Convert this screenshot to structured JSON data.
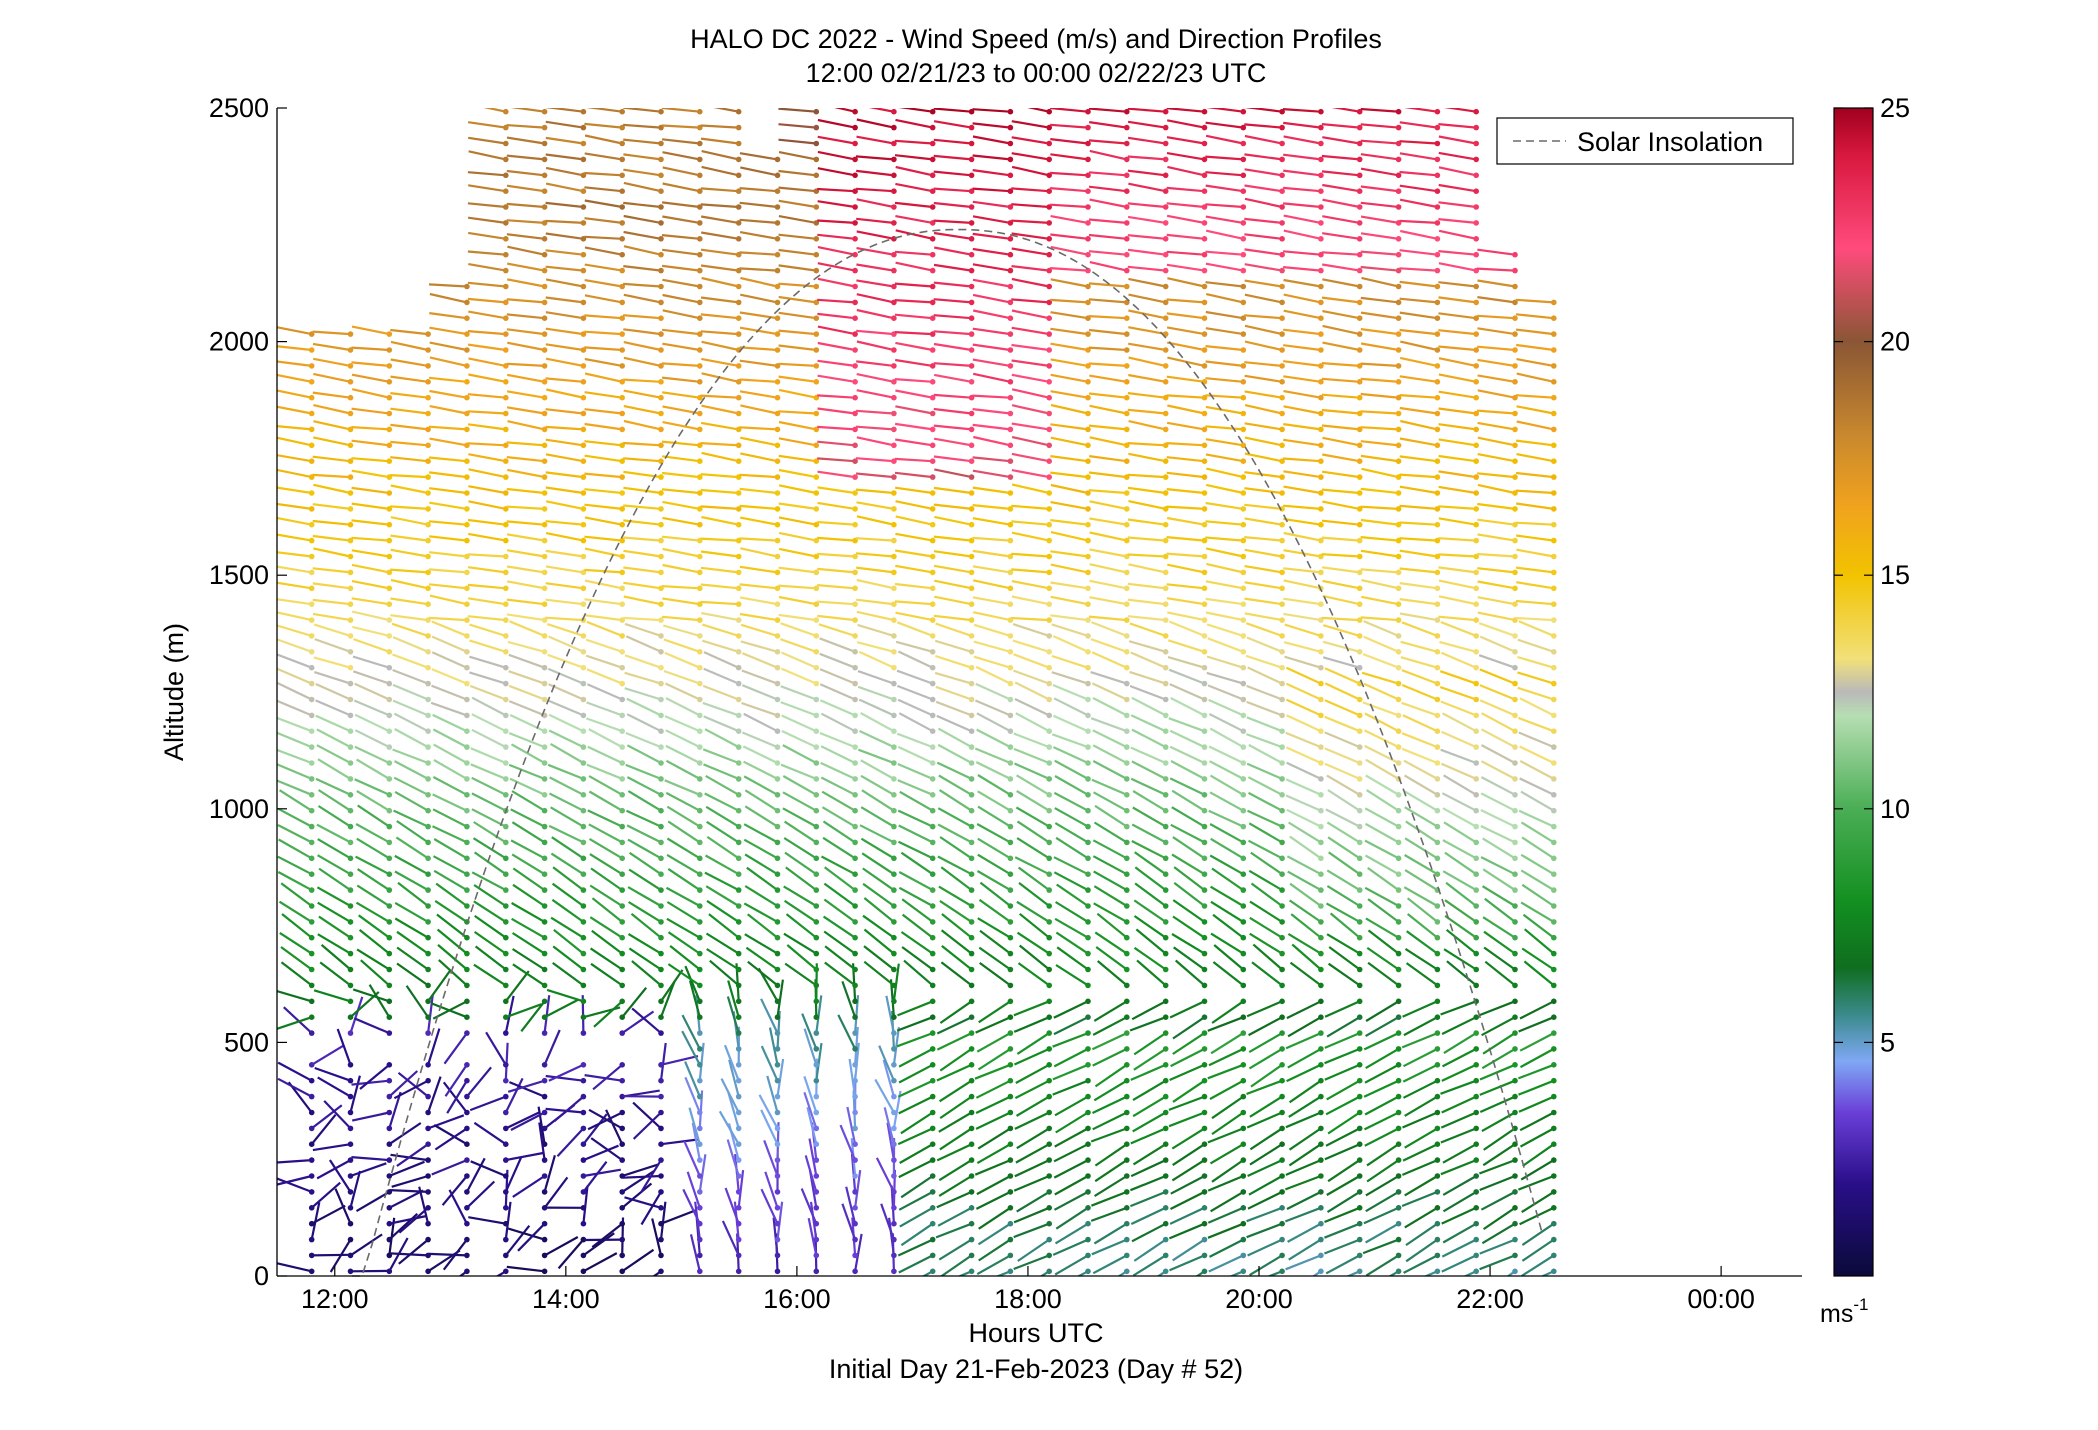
{
  "chart_data": {
    "type": "wind-barb-profile",
    "title": "HALO DC 2022 - Wind Speed (m/s) and Direction Profiles",
    "subtitle": "12:00 02/21/23 to 00:00 02/22/23  UTC",
    "xlabel": "Hours UTC",
    "xlabel2": "Initial Day 21-Feb-2023 (Day # 52)",
    "ylabel": "Altitude (m)",
    "xlim": [
      11.5,
      24.7
    ],
    "ylim": [
      0,
      2500
    ],
    "x_ticks": [
      12,
      14,
      16,
      18,
      20,
      22,
      24
    ],
    "x_tick_labels": [
      "12:00",
      "14:00",
      "16:00",
      "18:00",
      "20:00",
      "22:00",
      "00:00"
    ],
    "y_ticks": [
      0,
      500,
      1000,
      1500,
      2000,
      2500
    ],
    "y_tick_labels": [
      "0",
      "500",
      "1000",
      "1500",
      "2000",
      "2500"
    ],
    "colorbar": {
      "min": 0,
      "max": 25,
      "ticks": [
        5,
        10,
        15,
        20,
        25
      ],
      "tick_labels": [
        "5",
        "10",
        "15",
        "20",
        "25"
      ],
      "unit_base": "ms",
      "unit_exp": "-1",
      "stops": [
        {
          "v": 0,
          "c": "#0a0a3a"
        },
        {
          "v": 2,
          "c": "#2a0f8a"
        },
        {
          "v": 3.5,
          "c": "#6a3fd8"
        },
        {
          "v": 4.6,
          "c": "#7fa8f5"
        },
        {
          "v": 5.6,
          "c": "#3a8a8a"
        },
        {
          "v": 6.6,
          "c": "#0f6e1f"
        },
        {
          "v": 8,
          "c": "#138f20"
        },
        {
          "v": 10,
          "c": "#4aae55"
        },
        {
          "v": 12,
          "c": "#b6deb2"
        },
        {
          "v": 12.5,
          "c": "#b9b9b9"
        },
        {
          "v": 13.2,
          "c": "#f2e07a"
        },
        {
          "v": 15,
          "c": "#f2c300"
        },
        {
          "v": 16.5,
          "c": "#f0a21e"
        },
        {
          "v": 18,
          "c": "#c8882e"
        },
        {
          "v": 20,
          "c": "#8a5635"
        },
        {
          "v": 22,
          "c": "#ff4b7c"
        },
        {
          "v": 24,
          "c": "#d8183e"
        },
        {
          "v": 25,
          "c": "#a0001e"
        }
      ]
    },
    "legend": {
      "label": "Solar Insolation",
      "position": "top-right",
      "line_color": "#6a6a6a"
    },
    "solar_insolation": {
      "start_hour": 12.15,
      "peak_hour": 17.4,
      "end_hour": 22.45,
      "peak_altitude": 2240
    },
    "profiles": {
      "time_start": 11.8,
      "time_end": 22.75,
      "time_step": 0.336,
      "altitude_step": 34,
      "max_altitude": 2500,
      "regions": [
        {
          "name": "low-level-calm",
          "hours": [
            11.8,
            14.8
          ],
          "altitude": [
            0,
            480
          ],
          "speed_m_s": [
            0.5,
            3
          ]
        },
        {
          "name": "boundary-layer",
          "hours": [
            15.0,
            22.75
          ],
          "altitude": [
            0,
            700
          ],
          "speed_m_s": [
            3,
            10
          ]
        },
        {
          "name": "mid-level",
          "hours": [
            11.8,
            22.75
          ],
          "altitude": [
            500,
            1300
          ],
          "speed_m_s": [
            7,
            13
          ]
        },
        {
          "name": "upper",
          "hours": [
            11.8,
            22.75
          ],
          "altitude": [
            1300,
            2500
          ],
          "speed_m_s": [
            14,
            24
          ]
        }
      ]
    }
  }
}
